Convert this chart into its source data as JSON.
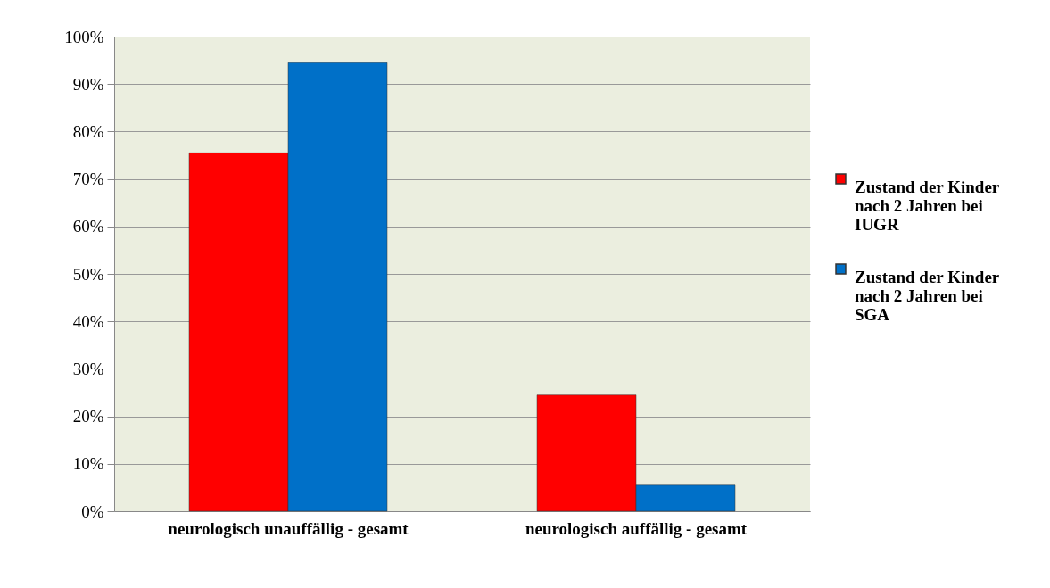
{
  "chart_data": {
    "type": "bar",
    "categories": [
      "neurologisch unauffällig - gesamt",
      "neurologisch auffällig - gesamt"
    ],
    "series": [
      {
        "name": "Zustand der Kinder nach 2 Jahren bei IUGR",
        "color": "#ff0000",
        "values": [
          75.5,
          24.5
        ]
      },
      {
        "name": "Zustand der Kinder nach 2 Jahren bei SGA",
        "color": "#0070c8",
        "values": [
          94.5,
          5.5
        ]
      }
    ],
    "ylim": [
      0,
      100
    ],
    "yticks": [
      {
        "value": 0,
        "label": "0%"
      },
      {
        "value": 10,
        "label": "10%"
      },
      {
        "value": 20,
        "label": "20%"
      },
      {
        "value": 30,
        "label": "30%"
      },
      {
        "value": 40,
        "label": "40%"
      },
      {
        "value": 50,
        "label": "50%"
      },
      {
        "value": 60,
        "label": "60%"
      },
      {
        "value": 70,
        "label": "70%"
      },
      {
        "value": 80,
        "label": "80%"
      },
      {
        "value": 90,
        "label": "90%"
      },
      {
        "value": 100,
        "label": "100%"
      }
    ],
    "grid": "y",
    "legend": "right"
  }
}
